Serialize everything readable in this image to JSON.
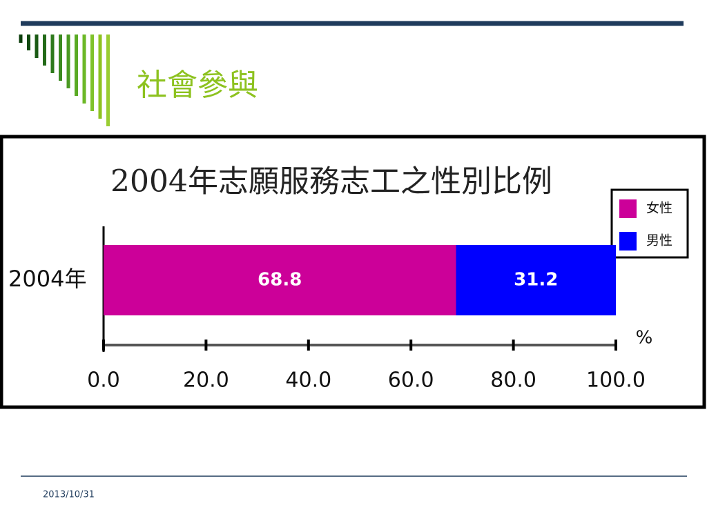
{
  "slide_title": "社會參與",
  "date": "2013/10/31",
  "chart_data": {
    "type": "bar",
    "orientation": "horizontal",
    "stacked": true,
    "title": "2004年志願服務志工之性別比例",
    "categories": [
      "2004年"
    ],
    "series": [
      {
        "name": "女性",
        "color": "#cc0099",
        "values": [
          68.8
        ]
      },
      {
        "name": "男性",
        "color": "#0000ff",
        "values": [
          31.2
        ]
      }
    ],
    "xlabel": "%",
    "xlim": [
      0,
      100
    ],
    "xticks": [
      {
        "value": 0,
        "label": "0.0"
      },
      {
        "value": 20,
        "label": "20.0"
      },
      {
        "value": 40,
        "label": "40.0"
      },
      {
        "value": 60,
        "label": "60.0"
      },
      {
        "value": 80,
        "label": "80.0"
      },
      {
        "value": 100,
        "label": "100.0"
      }
    ],
    "legend": "top-right"
  }
}
